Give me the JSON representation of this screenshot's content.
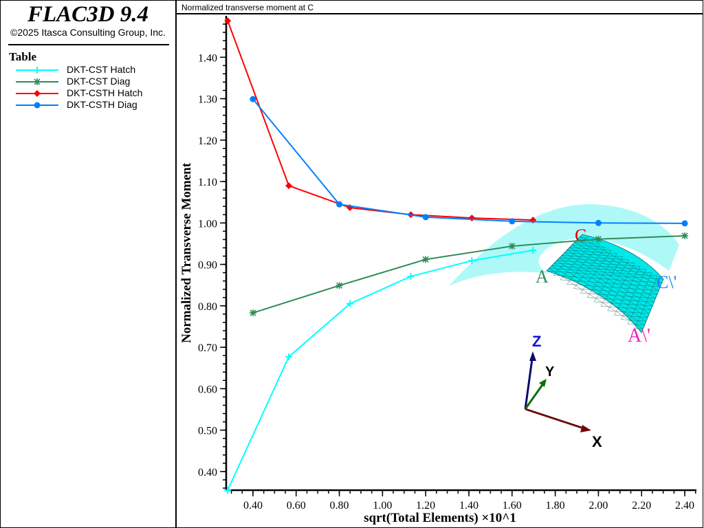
{
  "app": {
    "title": "FLAC3D 9.4",
    "copyright": "©2025 Itasca Consulting Group, Inc."
  },
  "legend": {
    "title": "Table",
    "items": [
      {
        "label": "DKT-CST Hatch",
        "color": "#00ffff",
        "marker": "plus"
      },
      {
        "label": "DKT-CST Diag",
        "color": "#2e8b57",
        "marker": "asterisk"
      },
      {
        "label": "DKT-CSTH Hatch",
        "color": "#ff0000",
        "marker": "diamond"
      },
      {
        "label": "DKT-CSTH Diag",
        "color": "#0080ff",
        "marker": "circle"
      }
    ]
  },
  "plot": {
    "title": "Normalized transverse moment at C"
  },
  "inset": {
    "labels": {
      "a": "A",
      "c": "C",
      "c_prime": "C\\'",
      "a_prime": "A\\'"
    },
    "axes": {
      "x": "X",
      "y": "Y",
      "z": "Z"
    }
  },
  "chart_data": {
    "type": "line",
    "title": "Normalized transverse moment at C",
    "xlabel": "sqrt(Total Elements) ×10^1",
    "ylabel": "Normalized Transverse Moment",
    "xlim": [
      0.276,
      2.454
    ],
    "ylim": [
      0.355,
      1.5
    ],
    "xticks": [
      "0.40",
      "0.60",
      "0.80",
      "1.00",
      "1.20",
      "1.40",
      "1.60",
      "1.80",
      "2.00",
      "2.20",
      "2.40"
    ],
    "yticks": [
      "0.40",
      "0.50",
      "0.60",
      "0.70",
      "0.80",
      "0.90",
      "1.00",
      "1.10",
      "1.20",
      "1.30",
      "1.40"
    ],
    "legend_position": "left-panel",
    "series": [
      {
        "name": "DKT-CST Hatch",
        "x": [
          0.283,
          0.566,
          0.849,
          1.131,
          1.414,
          1.697
        ],
        "y": [
          0.355,
          0.677,
          0.805,
          0.871,
          0.909,
          0.934
        ]
      },
      {
        "name": "DKT-CST Diag",
        "x": [
          0.4,
          0.8,
          1.2,
          1.6,
          2.0,
          2.4
        ],
        "y": [
          0.783,
          0.849,
          0.912,
          0.944,
          0.961,
          0.969
        ]
      },
      {
        "name": "DKT-CSTH Hatch",
        "x": [
          0.283,
          0.566,
          0.849,
          1.131,
          1.414,
          1.697
        ],
        "y": [
          1.488,
          1.09,
          1.037,
          1.02,
          1.012,
          1.007
        ]
      },
      {
        "name": "DKT-CSTH Diag",
        "x": [
          0.4,
          0.8,
          1.2,
          1.6,
          2.0,
          2.4
        ],
        "y": [
          1.299,
          1.045,
          1.014,
          1.004,
          1.0,
          0.999
        ]
      }
    ]
  }
}
